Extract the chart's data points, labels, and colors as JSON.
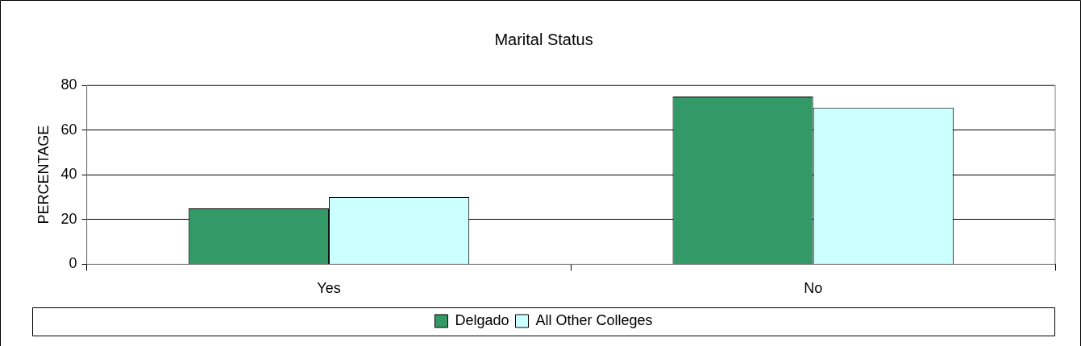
{
  "chart_data": {
    "type": "bar",
    "title": "Marital Status",
    "ylabel": "PERCENTAGE",
    "categories": [
      "Yes",
      "No"
    ],
    "series": [
      {
        "name": "Delgado",
        "color": "#339966",
        "values": [
          25,
          75
        ]
      },
      {
        "name": "All Other Colleges",
        "color": "#ccffff",
        "values": [
          30,
          70
        ]
      }
    ],
    "ylim": [
      0,
      80
    ],
    "yticks": [
      0,
      20,
      40,
      60,
      80
    ],
    "grid": "y",
    "legend": "bottom"
  }
}
